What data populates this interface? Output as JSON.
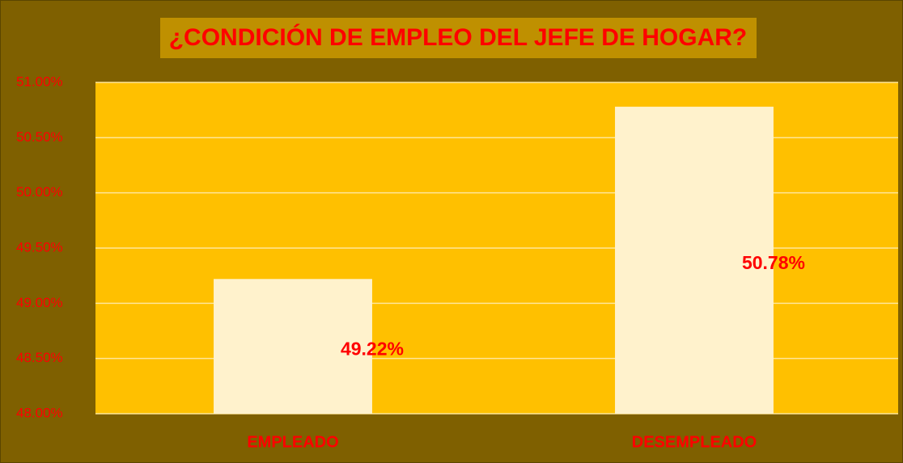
{
  "chart_data": {
    "type": "bar",
    "title": "¿CONDICIÓN DE EMPLEO DEL JEFE DE HOGAR?",
    "categories": [
      "EMPLEADO",
      "DESEMPLEADO"
    ],
    "values": [
      49.22,
      50.78
    ],
    "value_labels": [
      "49.22%",
      "50.78%"
    ],
    "color": "#fff2cc",
    "ylim": [
      48,
      51
    ],
    "yticks": [
      {
        "value": 48,
        "label": "48.00%"
      },
      {
        "value": 48.5,
        "label": "48.50%"
      },
      {
        "value": 49,
        "label": "49.00%"
      },
      {
        "value": 49.5,
        "label": "49.50%"
      },
      {
        "value": 50,
        "label": "50.00%"
      },
      {
        "value": 50.5,
        "label": "50.50%"
      },
      {
        "value": 51,
        "label": "51.00%"
      }
    ],
    "grid": true
  }
}
